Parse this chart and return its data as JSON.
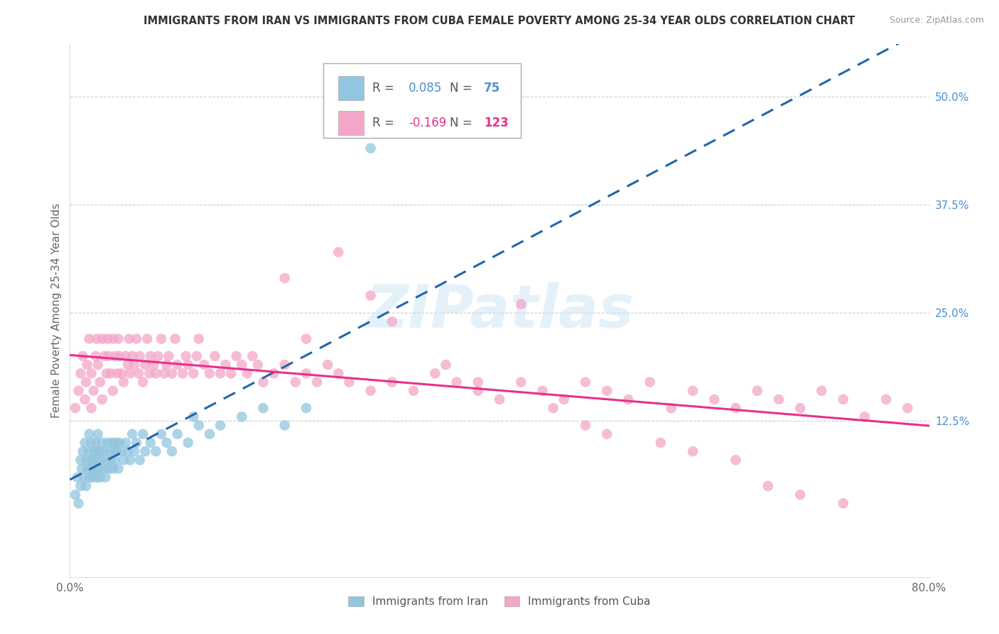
{
  "title": "IMMIGRANTS FROM IRAN VS IMMIGRANTS FROM CUBA FEMALE POVERTY AMONG 25-34 YEAR OLDS CORRELATION CHART",
  "source": "Source: ZipAtlas.com",
  "ylabel": "Female Poverty Among 25-34 Year Olds",
  "right_yticks": [
    "50.0%",
    "37.5%",
    "25.0%",
    "12.5%"
  ],
  "right_ytick_vals": [
    0.5,
    0.375,
    0.25,
    0.125
  ],
  "legend_iran_R": "0.085",
  "legend_iran_N": "75",
  "legend_cuba_R": "-0.169",
  "legend_cuba_N": "123",
  "iran_color": "#92c5de",
  "cuba_color": "#f4a6c8",
  "iran_line_color": "#2166ac",
  "cuba_line_color": "#e8308a",
  "watermark": "ZIPatlas",
  "xmin": 0.0,
  "xmax": 0.8,
  "ymin": -0.055,
  "ymax": 0.56,
  "iran_scatter_x": [
    0.005,
    0.007,
    0.008,
    0.01,
    0.01,
    0.011,
    0.012,
    0.013,
    0.014,
    0.015,
    0.015,
    0.016,
    0.017,
    0.018,
    0.018,
    0.019,
    0.02,
    0.02,
    0.021,
    0.022,
    0.022,
    0.023,
    0.024,
    0.025,
    0.025,
    0.026,
    0.026,
    0.027,
    0.028,
    0.028,
    0.029,
    0.03,
    0.031,
    0.032,
    0.033,
    0.034,
    0.035,
    0.036,
    0.037,
    0.038,
    0.039,
    0.04,
    0.041,
    0.042,
    0.043,
    0.044,
    0.045,
    0.046,
    0.048,
    0.05,
    0.052,
    0.054,
    0.056,
    0.058,
    0.06,
    0.062,
    0.065,
    0.068,
    0.07,
    0.075,
    0.08,
    0.085,
    0.09,
    0.095,
    0.1,
    0.11,
    0.115,
    0.12,
    0.13,
    0.14,
    0.16,
    0.18,
    0.2,
    0.22,
    0.28
  ],
  "iran_scatter_y": [
    0.04,
    0.06,
    0.03,
    0.05,
    0.08,
    0.07,
    0.09,
    0.06,
    0.1,
    0.05,
    0.08,
    0.07,
    0.09,
    0.06,
    0.11,
    0.08,
    0.07,
    0.1,
    0.06,
    0.09,
    0.08,
    0.07,
    0.1,
    0.06,
    0.09,
    0.08,
    0.11,
    0.07,
    0.09,
    0.06,
    0.08,
    0.1,
    0.07,
    0.09,
    0.06,
    0.08,
    0.1,
    0.07,
    0.09,
    0.08,
    0.1,
    0.07,
    0.09,
    0.08,
    0.1,
    0.09,
    0.07,
    0.1,
    0.09,
    0.08,
    0.1,
    0.09,
    0.08,
    0.11,
    0.09,
    0.1,
    0.08,
    0.11,
    0.09,
    0.1,
    0.09,
    0.11,
    0.1,
    0.09,
    0.11,
    0.1,
    0.13,
    0.12,
    0.11,
    0.12,
    0.13,
    0.14,
    0.12,
    0.14,
    0.44
  ],
  "cuba_scatter_x": [
    0.005,
    0.008,
    0.01,
    0.012,
    0.014,
    0.015,
    0.016,
    0.018,
    0.02,
    0.02,
    0.022,
    0.024,
    0.025,
    0.026,
    0.028,
    0.03,
    0.03,
    0.032,
    0.034,
    0.035,
    0.036,
    0.038,
    0.04,
    0.04,
    0.042,
    0.044,
    0.045,
    0.046,
    0.048,
    0.05,
    0.052,
    0.054,
    0.055,
    0.056,
    0.058,
    0.06,
    0.062,
    0.064,
    0.065,
    0.068,
    0.07,
    0.072,
    0.074,
    0.075,
    0.078,
    0.08,
    0.082,
    0.085,
    0.088,
    0.09,
    0.092,
    0.095,
    0.098,
    0.1,
    0.105,
    0.108,
    0.11,
    0.115,
    0.118,
    0.12,
    0.125,
    0.13,
    0.135,
    0.14,
    0.145,
    0.15,
    0.155,
    0.16,
    0.165,
    0.17,
    0.175,
    0.18,
    0.19,
    0.2,
    0.21,
    0.22,
    0.23,
    0.24,
    0.25,
    0.26,
    0.28,
    0.3,
    0.32,
    0.34,
    0.36,
    0.38,
    0.4,
    0.42,
    0.44,
    0.46,
    0.48,
    0.5,
    0.52,
    0.54,
    0.56,
    0.58,
    0.6,
    0.62,
    0.64,
    0.66,
    0.68,
    0.7,
    0.72,
    0.74,
    0.76,
    0.78,
    0.2,
    0.22,
    0.25,
    0.28,
    0.3,
    0.35,
    0.38,
    0.42,
    0.45,
    0.48,
    0.5,
    0.55,
    0.58,
    0.62,
    0.65,
    0.68,
    0.72
  ],
  "cuba_scatter_y": [
    0.14,
    0.16,
    0.18,
    0.2,
    0.15,
    0.17,
    0.19,
    0.22,
    0.14,
    0.18,
    0.16,
    0.2,
    0.22,
    0.19,
    0.17,
    0.15,
    0.22,
    0.2,
    0.18,
    0.22,
    0.2,
    0.18,
    0.16,
    0.22,
    0.2,
    0.18,
    0.22,
    0.2,
    0.18,
    0.17,
    0.2,
    0.19,
    0.22,
    0.18,
    0.2,
    0.19,
    0.22,
    0.18,
    0.2,
    0.17,
    0.19,
    0.22,
    0.18,
    0.2,
    0.19,
    0.18,
    0.2,
    0.22,
    0.18,
    0.19,
    0.2,
    0.18,
    0.22,
    0.19,
    0.18,
    0.2,
    0.19,
    0.18,
    0.2,
    0.22,
    0.19,
    0.18,
    0.2,
    0.18,
    0.19,
    0.18,
    0.2,
    0.19,
    0.18,
    0.2,
    0.19,
    0.17,
    0.18,
    0.19,
    0.17,
    0.18,
    0.17,
    0.19,
    0.18,
    0.17,
    0.16,
    0.17,
    0.16,
    0.18,
    0.17,
    0.16,
    0.15,
    0.17,
    0.16,
    0.15,
    0.17,
    0.16,
    0.15,
    0.17,
    0.14,
    0.16,
    0.15,
    0.14,
    0.16,
    0.15,
    0.14,
    0.16,
    0.15,
    0.13,
    0.15,
    0.14,
    0.29,
    0.22,
    0.32,
    0.27,
    0.24,
    0.19,
    0.17,
    0.26,
    0.14,
    0.12,
    0.11,
    0.1,
    0.09,
    0.08,
    0.05,
    0.04,
    0.03
  ]
}
